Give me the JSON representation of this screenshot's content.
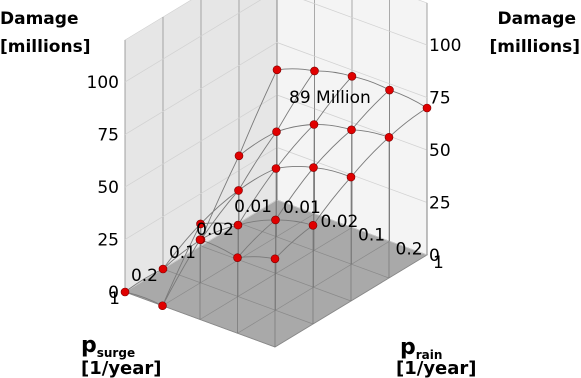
{
  "chart_data": {
    "type": "3d-surface",
    "z_axis": {
      "label_line1": "Damage",
      "label_line2": "[millions]",
      "ticks": [
        "0",
        "25",
        "50",
        "75",
        "100"
      ],
      "range": [
        0,
        120
      ]
    },
    "x_axis": {
      "label_main": "p",
      "label_sub": "surge",
      "label_unit": "[1/year]",
      "ticks": [
        "0.01",
        "0.02",
        "0.1",
        "0.2",
        "1"
      ]
    },
    "y_axis": {
      "label_main": "p",
      "label_sub": "rain",
      "label_unit": "[1/year]",
      "ticks": [
        "0.01",
        "0.02",
        "0.1",
        "0.2",
        "1"
      ]
    },
    "annotation": "89 Million",
    "grid": true,
    "colors": {
      "point": "#e00000",
      "floor": "#a9a9a9",
      "wall": "#e6e6e6",
      "surface_line": "#7a7a7a"
    },
    "surface": {
      "p_surge": [
        "0.01",
        "0.02",
        "0.1",
        "0.2",
        "1"
      ],
      "p_rain": [
        "0.01",
        "0.02",
        "0.1",
        "0.2",
        "1"
      ],
      "damage": [
        [
          62,
          68,
          72,
          72,
          70
        ],
        [
          32,
          50,
          60,
          64,
          67
        ],
        [
          3,
          33,
          50,
          57,
          59
        ],
        [
          0,
          28,
          34,
          43,
          47
        ],
        [
          0,
          0,
          38,
          36,
          42
        ]
      ]
    }
  }
}
